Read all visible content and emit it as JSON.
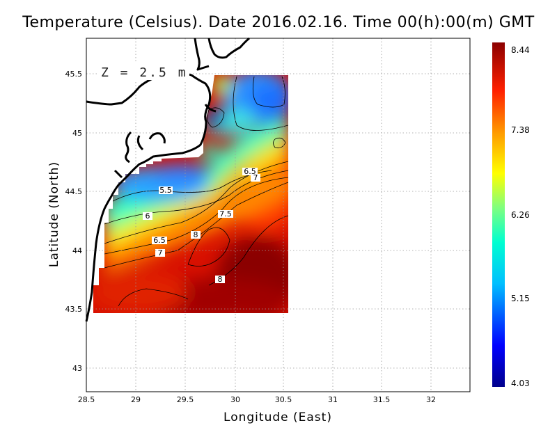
{
  "title": "Temperature (Celsius). Date 2016.02.16. Time 00(h):00(m)  GMT",
  "xlabel": "Longitude (East)",
  "ylabel": "Latitude (North)",
  "depth_label": "Z = 2.5 m",
  "x_ticks": [
    "28.5",
    "29",
    "29.5",
    "30",
    "30.5",
    "31",
    "31.5",
    "32"
  ],
  "y_ticks": [
    "43",
    "43.5",
    "44",
    "44.5",
    "45",
    "45.5"
  ],
  "colorbar": {
    "labels": [
      "8.44",
      "7.38",
      "6.26",
      "5.15",
      "4.03"
    ],
    "min": 4.03,
    "max": 8.44,
    "colors": [
      "#00008b",
      "#0000ff",
      "#00bfff",
      "#00ffd0",
      "#7fff7f",
      "#ffff00",
      "#ff9900",
      "#ff2000",
      "#8b0000"
    ]
  },
  "contour_labels": [
    "5.5",
    "6",
    "6.5",
    "7",
    "7.5",
    "8",
    "6.5",
    "7",
    "8"
  ],
  "chart_data": {
    "type": "heatmap",
    "variable": "Temperature (Celsius)",
    "xlim": [
      28.5,
      32.4
    ],
    "ylim": [
      42.8,
      45.8
    ],
    "grid": true,
    "colorbar_range": [
      4.03,
      8.44
    ],
    "contour_levels": [
      5.5,
      6,
      6.5,
      7,
      7.5,
      8
    ],
    "regions": [
      {
        "area": "north-east corner near coast",
        "value": 4.5
      },
      {
        "area": "north-east offshore",
        "value": 5.4
      },
      {
        "area": "north coastal band",
        "value": 5.6
      },
      {
        "area": "central shelf",
        "value": 6.3
      },
      {
        "area": "east middle",
        "value": 7.3
      },
      {
        "area": "south",
        "value": 8.1
      }
    ]
  }
}
